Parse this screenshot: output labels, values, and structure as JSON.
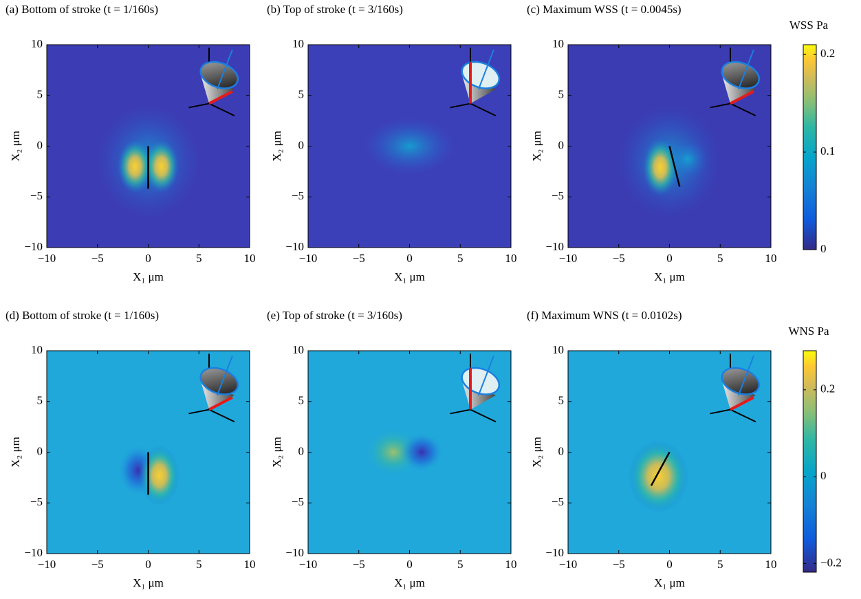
{
  "chart_data": [
    {
      "type": "heatmap",
      "title": "(a) Bottom of stroke (t = 1/160s)",
      "xlabel": "X₁ μm",
      "ylabel": "X₂ μm",
      "xlim": [
        -10,
        10
      ],
      "ylim": [
        -10,
        10
      ],
      "xticks": [
        {
          "value": -10,
          "label": "−10"
        },
        {
          "value": -5,
          "label": "−5"
        },
        0,
        5,
        10
      ],
      "yticks": [
        {
          "value": -10,
          "label": "−10"
        },
        {
          "value": -5,
          "label": "−5"
        },
        0,
        5,
        10
      ]
    },
    {
      "type": "heatmap",
      "title": "(b) Top of stroke (t = 3/160s)",
      "xlabel": "X₁ μm",
      "ylabel": "X₂ μm",
      "xlim": [
        -10,
        10
      ],
      "ylim": [
        -10,
        10
      ],
      "xticks": [
        {
          "value": -10,
          "label": "−10"
        },
        {
          "value": -5,
          "label": "−5"
        },
        0,
        5,
        10
      ],
      "yticks": [
        {
          "value": -10,
          "label": "−10"
        },
        {
          "value": -5,
          "label": "−5"
        },
        0,
        5,
        10
      ]
    },
    {
      "type": "heatmap",
      "title": "(c) Maximum WSS (t = 0.0045s)",
      "xlabel": "X₁ μm",
      "ylabel": "X₂ μm",
      "xlim": [
        -10,
        10
      ],
      "ylim": [
        -10,
        10
      ],
      "xticks": [
        {
          "value": -10,
          "label": "−10"
        },
        {
          "value": -5,
          "label": "−5"
        },
        0,
        5,
        10
      ],
      "yticks": [
        {
          "value": -10,
          "label": "−10"
        },
        {
          "value": -5,
          "label": "−5"
        },
        0,
        5,
        10
      ],
      "colorbar": {
        "label": "WSS Pa",
        "lim": [
          0,
          0.21
        ],
        "ticks": [
          0,
          0.1,
          0.2
        ]
      }
    },
    {
      "type": "heatmap",
      "title": "(d) Bottom of stroke (t = 1/160s)",
      "xlabel": "X₁ μm",
      "ylabel": "X₂ μm",
      "xlim": [
        -10,
        10
      ],
      "ylim": [
        -10,
        10
      ],
      "xticks": [
        {
          "value": -10,
          "label": "−10"
        },
        {
          "value": -5,
          "label": "−5"
        },
        0,
        5,
        10
      ],
      "yticks": [
        {
          "value": -10,
          "label": "−10"
        },
        {
          "value": -5,
          "label": "−5"
        },
        0,
        5,
        10
      ]
    },
    {
      "type": "heatmap",
      "title": "(e) Top of stroke (t = 3/160s)",
      "xlabel": "X₁ μm",
      "ylabel": "X₂ μm",
      "xlim": [
        -10,
        10
      ],
      "ylim": [
        -10,
        10
      ],
      "xticks": [
        {
          "value": -10,
          "label": "−10"
        },
        {
          "value": -5,
          "label": "−5"
        },
        0,
        5,
        10
      ],
      "yticks": [
        {
          "value": -10,
          "label": "−10"
        },
        {
          "value": -5,
          "label": "−5"
        },
        0,
        5,
        10
      ]
    },
    {
      "type": "heatmap",
      "title": "(f) Maximum WNS (t = 0.0102s)",
      "xlabel": "X₁ μm",
      "ylabel": "X₂ μm",
      "xlim": [
        -10,
        10
      ],
      "ylim": [
        -10,
        10
      ],
      "xticks": [
        {
          "value": -10,
          "label": "−10"
        },
        {
          "value": -5,
          "label": "−5"
        },
        0,
        5,
        10
      ],
      "yticks": [
        {
          "value": -10,
          "label": "−10"
        },
        {
          "value": -5,
          "label": "−5"
        },
        0,
        5,
        10
      ],
      "colorbar": {
        "label": "WNS Pa",
        "lim": [
          -0.22,
          0.29
        ],
        "ticks": [
          {
            "value": -0.2,
            "label": "−0.2"
          },
          0,
          0.2
        ]
      }
    }
  ]
}
